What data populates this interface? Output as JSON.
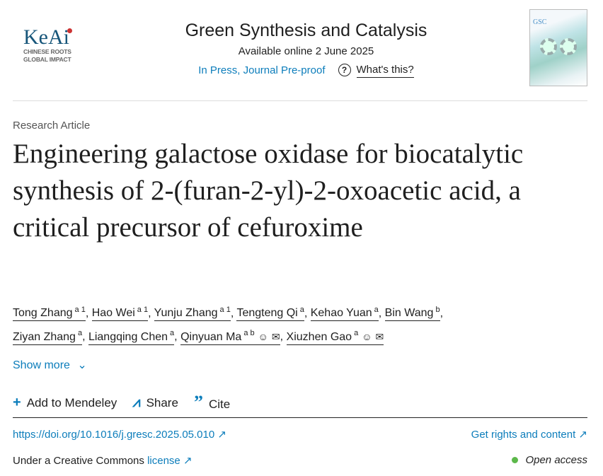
{
  "header": {
    "logo_text": "KeAi",
    "logo_tagline_1": "CHINESE ROOTS",
    "logo_tagline_2": "GLOBAL IMPACT",
    "journal_title": "Green Synthesis and Catalysis",
    "available": "Available online 2 June 2025",
    "status": "In Press, Journal Pre-proof",
    "whats_this": "What's this?",
    "cover_text": "GSC"
  },
  "article": {
    "type": "Research Article",
    "title": "Engineering galactose oxidase for biocatalytic synthesis of 2-(furan-2-yl)-2-oxoacetic acid, a critical precursor of cefuroxime",
    "authors": [
      {
        "name": "Tong Zhang",
        "sup": "a 1"
      },
      {
        "name": "Hao Wei",
        "sup": "a 1"
      },
      {
        "name": "Yunju Zhang",
        "sup": "a 1"
      },
      {
        "name": "Tengteng Qi",
        "sup": "a"
      },
      {
        "name": "Kehao Yuan",
        "sup": "a"
      },
      {
        "name": "Bin Wang",
        "sup": "b"
      },
      {
        "name": "Ziyan Zhang",
        "sup": "a"
      },
      {
        "name": "Liangqing Chen",
        "sup": "a"
      },
      {
        "name": "Qinyuan Ma",
        "sup": "a b",
        "icons": [
          "person-icon",
          "email-icon"
        ]
      },
      {
        "name": "Xiuzhen Gao",
        "sup": "a",
        "icons": [
          "person-icon",
          "email-icon"
        ]
      }
    ],
    "show_more": "Show more"
  },
  "actions": {
    "mendeley": "Add to Mendeley",
    "share": "Share",
    "cite": "Cite"
  },
  "footer": {
    "doi": "https://doi.org/10.1016/j.gresc.2025.05.010",
    "rights": "Get rights and content",
    "license_prefix": "Under a Creative Commons",
    "license_link": "license",
    "open_access": "Open access"
  },
  "colors": {
    "link": "#0c7dbb",
    "open_access_dot": "#5cb84a"
  }
}
